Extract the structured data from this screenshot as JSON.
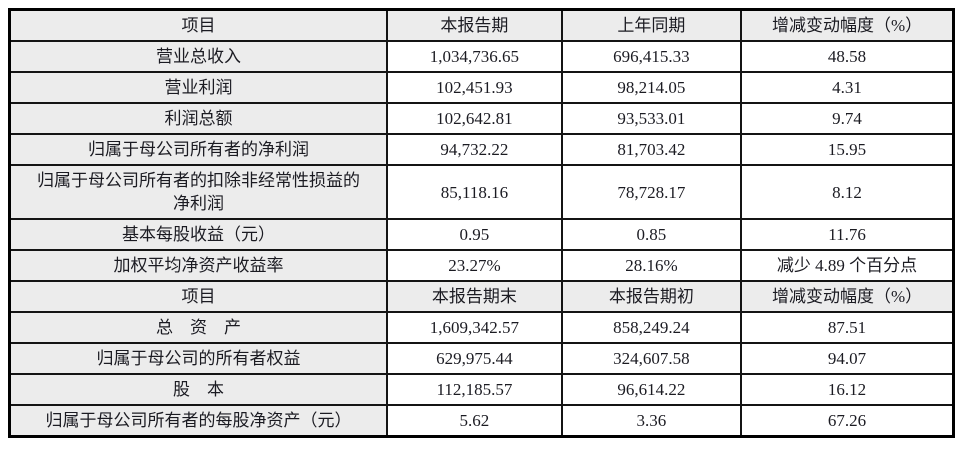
{
  "document": {
    "type": "financial-summary-table",
    "language": "zh-CN"
  },
  "colors": {
    "border": "#000000",
    "inner_border": "#141414",
    "header_bg": "#ececec",
    "item_bg": "#ececec",
    "cell_bg": "#ffffff",
    "text": "#1b1b22",
    "page_bg": "#ffffff"
  },
  "table": {
    "sections": [
      {
        "header": [
          "项目",
          "本报告期",
          "上年同期",
          "增减变动幅度（%）"
        ],
        "rows": [
          [
            "营业总收入",
            "1,034,736.65",
            "696,415.33",
            "48.58"
          ],
          [
            "营业利润",
            "102,451.93",
            "98,214.05",
            "4.31"
          ],
          [
            "利润总额",
            "102,642.81",
            "93,533.01",
            "9.74"
          ],
          [
            "归属于母公司所有者的净利润",
            "94,732.22",
            "81,703.42",
            "15.95"
          ],
          [
            "归属于母公司所有者的扣除非经常性损益的净利润",
            "85,118.16",
            "78,728.17",
            "8.12"
          ],
          [
            "基本每股收益（元）",
            "0.95",
            "0.85",
            "11.76"
          ],
          [
            "加权平均净资产收益率",
            "23.27%",
            "28.16%",
            "减少 4.89 个百分点"
          ]
        ]
      },
      {
        "header": [
          "项目",
          "本报告期末",
          "本报告期初",
          "增减变动幅度（%）"
        ],
        "rows": [
          [
            "总　资　产",
            "1,609,342.57",
            "858,249.24",
            "87.51"
          ],
          [
            "归属于母公司的所有者权益",
            "629,975.44",
            "324,607.58",
            "94.07"
          ],
          [
            "股　本",
            "112,185.57",
            "96,614.22",
            "16.12"
          ],
          [
            "归属于母公司所有者的每股净资产（元）",
            "5.62",
            "3.36",
            "67.26"
          ]
        ]
      }
    ]
  }
}
